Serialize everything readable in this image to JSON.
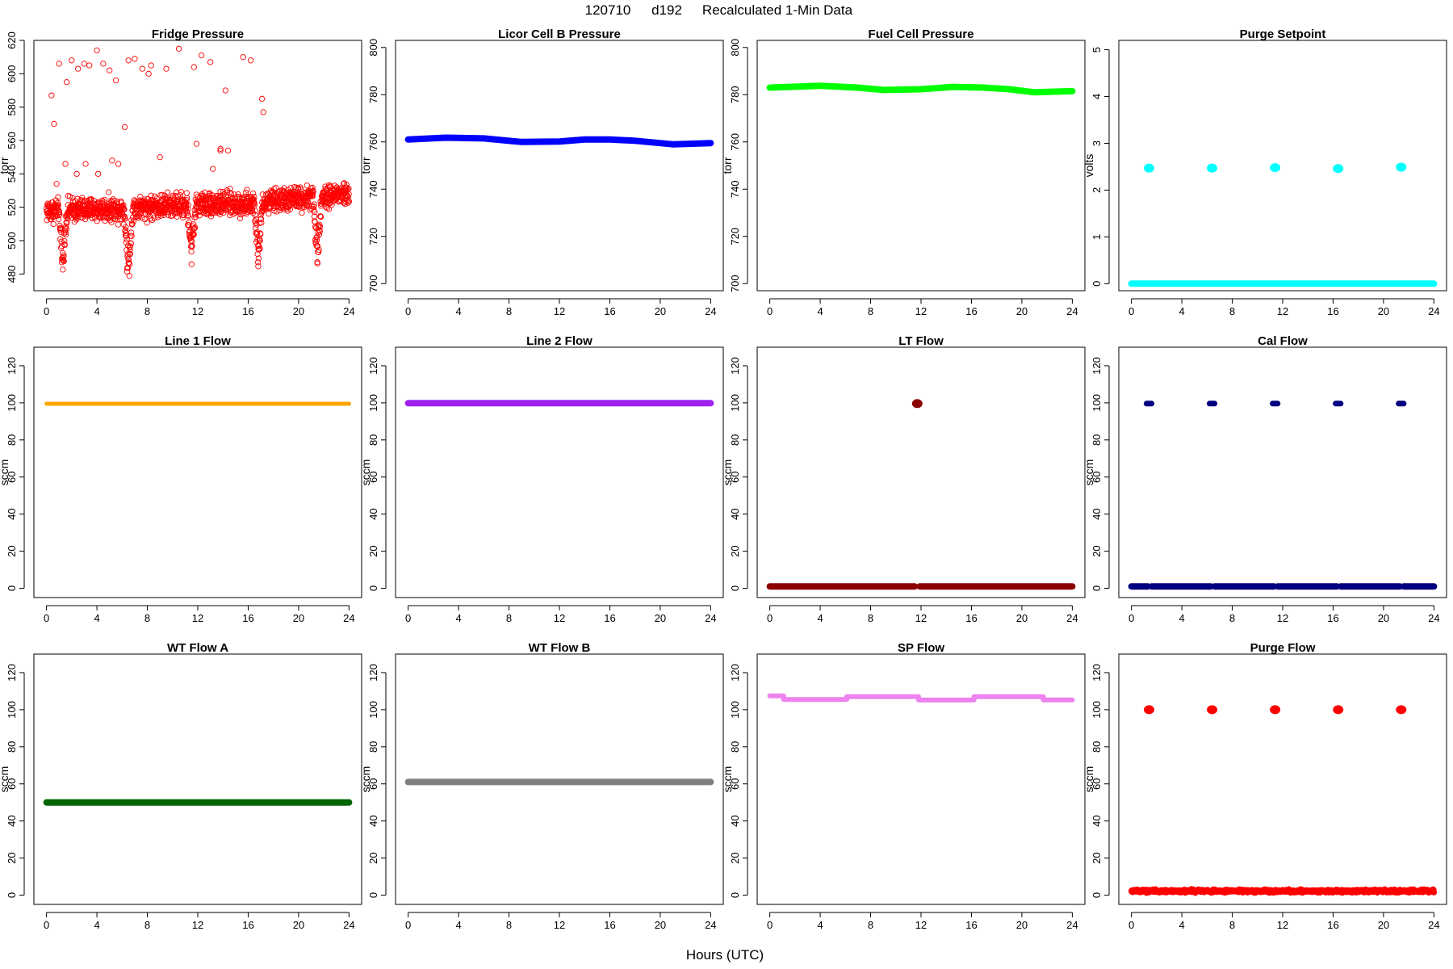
{
  "figure": {
    "title_parts": [
      "120710",
      "d192",
      "Recalculated 1-Min Data"
    ],
    "xlabel": "Hours (UTC)"
  },
  "chart_data": [
    {
      "type": "scatter",
      "title": "Fridge Pressure",
      "ylabel": "torr",
      "color": "#ff0000",
      "marker": "open-circle",
      "xlim": [
        -1,
        25
      ],
      "ylim": [
        470,
        620
      ],
      "xticks": [
        0,
        4,
        8,
        12,
        16,
        20,
        24
      ],
      "yticks": [
        480,
        500,
        520,
        540,
        560,
        580,
        600,
        620
      ],
      "series": [
        {
          "style": "noisy",
          "baseline": [
            [
              0,
              518
            ],
            [
              6,
              519
            ],
            [
              12,
              522
            ],
            [
              17,
              522
            ],
            [
              18,
              524
            ],
            [
              24,
              528
            ]
          ],
          "spread": 7,
          "dips": [
            [
              1.3,
              483
            ],
            [
              6.5,
              474
            ],
            [
              11.5,
              484
            ],
            [
              16.8,
              486
            ],
            [
              21.5,
              484
            ]
          ],
          "x": [
            0.4,
            0.6,
            1.0,
            1.6,
            2.0,
            2.5,
            3.0,
            3.4,
            4.0,
            4.5,
            5.0,
            5.5,
            6.2,
            6.5,
            7.0,
            7.6,
            8.1,
            8.3,
            9.0,
            9.5,
            10.5,
            11.7,
            11.9,
            12.3,
            13.0,
            13.8,
            14.2,
            14.4,
            15.6,
            16.2,
            17.1,
            17.2,
            0.8,
            1.5,
            2.4,
            3.1,
            4.1,
            5.2,
            5.7,
            13.2,
            13.8
          ],
          "y": [
            587,
            570,
            606,
            595,
            608,
            603,
            606,
            605,
            614,
            606,
            602,
            596,
            568,
            608,
            609,
            603,
            600,
            605,
            550,
            603,
            615,
            604,
            558,
            611,
            607,
            554,
            590,
            554,
            610,
            608,
            585,
            577,
            534,
            546,
            540,
            546,
            540,
            548,
            546,
            543,
            555
          ]
        }
      ]
    },
    {
      "type": "line",
      "title": "Licor Cell B Pressure",
      "ylabel": "torr",
      "color": "#0000ff",
      "xlim": [
        -1,
        25
      ],
      "ylim": [
        697,
        803
      ],
      "xticks": [
        0,
        4,
        8,
        12,
        16,
        20,
        24
      ],
      "yticks": [
        700,
        720,
        740,
        760,
        780,
        800
      ],
      "series": [
        {
          "style": "thick",
          "x": [
            0,
            3,
            6,
            9,
            12,
            14,
            16,
            18,
            21,
            24
          ],
          "y": [
            761,
            761.8,
            761.5,
            760,
            760.2,
            761,
            761,
            760.5,
            759,
            759.5
          ]
        }
      ]
    },
    {
      "type": "line",
      "title": "Fuel Cell Pressure",
      "ylabel": "torr",
      "color": "#00ff00",
      "xlim": [
        -1,
        25
      ],
      "ylim": [
        697,
        803
      ],
      "xticks": [
        0,
        4,
        8,
        12,
        16,
        20,
        24
      ],
      "yticks": [
        700,
        720,
        740,
        760,
        780,
        800
      ],
      "series": [
        {
          "style": "thick",
          "x": [
            0,
            4,
            7,
            9,
            12,
            14.5,
            17,
            19,
            21,
            24
          ],
          "y": [
            783,
            783.8,
            783,
            782,
            782.3,
            783.3,
            783,
            782.3,
            781,
            781.5
          ]
        }
      ]
    },
    {
      "type": "scatter",
      "title": "Purge Setpoint",
      "ylabel": "volts",
      "color": "#00ffff",
      "xlim": [
        -1,
        25
      ],
      "ylim": [
        -0.15,
        5.2
      ],
      "xticks": [
        0,
        4,
        8,
        12,
        16,
        20,
        24
      ],
      "yticks": [
        0,
        1,
        2,
        3,
        4,
        5
      ],
      "series": [
        {
          "style": "thick",
          "x": [
            0,
            24
          ],
          "y": [
            0,
            0
          ]
        },
        {
          "style": "blobs",
          "x": [
            1.4,
            6.4,
            11.4,
            16.4,
            21.4
          ],
          "y": [
            2.47,
            2.47,
            2.48,
            2.46,
            2.49
          ]
        }
      ]
    },
    {
      "type": "line",
      "title": "Line 1 Flow",
      "ylabel": "sccm",
      "color": "#ffa500",
      "xlim": [
        -1,
        25
      ],
      "ylim": [
        -5,
        130
      ],
      "xticks": [
        0,
        4,
        8,
        12,
        16,
        20,
        24
      ],
      "yticks": [
        0,
        20,
        40,
        60,
        80,
        100,
        120
      ],
      "series": [
        {
          "style": "thin",
          "x": [
            0,
            24
          ],
          "y": [
            99.5,
            99.5
          ]
        }
      ]
    },
    {
      "type": "line",
      "title": "Line 2 Flow",
      "ylabel": "sccm",
      "color": "#a020f0",
      "xlim": [
        -1,
        25
      ],
      "ylim": [
        -5,
        130
      ],
      "xticks": [
        0,
        4,
        8,
        12,
        16,
        20,
        24
      ],
      "yticks": [
        0,
        20,
        40,
        60,
        80,
        100,
        120
      ],
      "series": [
        {
          "style": "thick",
          "x": [
            0,
            24
          ],
          "y": [
            99.8,
            99.8
          ]
        }
      ]
    },
    {
      "type": "scatter",
      "title": "LT Flow",
      "ylabel": "sccm",
      "color": "#8b0000",
      "xlim": [
        -1,
        25
      ],
      "ylim": [
        -5,
        130
      ],
      "xticks": [
        0,
        4,
        8,
        12,
        16,
        20,
        24
      ],
      "yticks": [
        0,
        20,
        40,
        60,
        80,
        100,
        120
      ],
      "series": [
        {
          "style": "thick",
          "x": [
            0,
            11.5
          ],
          "y": [
            1,
            1
          ]
        },
        {
          "style": "thick",
          "x": [
            11.9,
            24
          ],
          "y": [
            1,
            1
          ]
        },
        {
          "style": "blobs",
          "x": [
            11.7
          ],
          "y": [
            99.6
          ]
        }
      ]
    },
    {
      "type": "scatter",
      "title": "Cal Flow",
      "ylabel": "sccm",
      "color": "#000080",
      "xlim": [
        -1,
        25
      ],
      "ylim": [
        -5,
        130
      ],
      "xticks": [
        0,
        4,
        8,
        12,
        16,
        20,
        24
      ],
      "yticks": [
        0,
        20,
        40,
        60,
        80,
        100,
        120
      ],
      "series": [
        {
          "style": "thick",
          "x": [
            0,
            1.3
          ],
          "y": [
            1,
            1
          ]
        },
        {
          "style": "thick",
          "x": [
            1.6,
            6.3
          ],
          "y": [
            1,
            1
          ]
        },
        {
          "style": "thick",
          "x": [
            6.6,
            11.3
          ],
          "y": [
            1,
            1
          ]
        },
        {
          "style": "thick",
          "x": [
            11.6,
            16.3
          ],
          "y": [
            1,
            1
          ]
        },
        {
          "style": "thick",
          "x": [
            16.6,
            21.3
          ],
          "y": [
            1,
            1
          ]
        },
        {
          "style": "thick",
          "x": [
            21.6,
            24
          ],
          "y": [
            1,
            1
          ]
        },
        {
          "style": "bars",
          "x": [
            1.4,
            6.4,
            11.4,
            16.4,
            21.4
          ],
          "y": [
            99.6,
            99.6,
            99.6,
            99.6,
            99.6
          ]
        }
      ]
    },
    {
      "type": "line",
      "title": "WT Flow A",
      "ylabel": "sccm",
      "color": "#006400",
      "xlim": [
        -1,
        25
      ],
      "ylim": [
        -5,
        130
      ],
      "xticks": [
        0,
        4,
        8,
        12,
        16,
        20,
        24
      ],
      "yticks": [
        0,
        20,
        40,
        60,
        80,
        100,
        120
      ],
      "series": [
        {
          "style": "thick",
          "x": [
            0,
            24
          ],
          "y": [
            50,
            50
          ]
        }
      ]
    },
    {
      "type": "line",
      "title": "WT Flow B",
      "ylabel": "sccm",
      "color": "#808080",
      "xlim": [
        -1,
        25
      ],
      "ylim": [
        -5,
        130
      ],
      "xticks": [
        0,
        4,
        8,
        12,
        16,
        20,
        24
      ],
      "yticks": [
        0,
        20,
        40,
        60,
        80,
        100,
        120
      ],
      "series": [
        {
          "style": "thick",
          "x": [
            0,
            24
          ],
          "y": [
            61,
            61
          ]
        }
      ]
    },
    {
      "type": "line",
      "title": "SP Flow",
      "ylabel": "sccm",
      "color": "#ee82ee",
      "xlim": [
        -1,
        25
      ],
      "ylim": [
        -5,
        130
      ],
      "xticks": [
        0,
        4,
        8,
        12,
        16,
        20,
        24
      ],
      "yticks": [
        0,
        20,
        40,
        60,
        80,
        100,
        120
      ],
      "series": [
        {
          "style": "step",
          "x": [
            0,
            1.1,
            1.1,
            6.1,
            6.1,
            11.8,
            11.8,
            16.2,
            16.2,
            21.7,
            21.7,
            24
          ],
          "y": [
            107.5,
            107.5,
            105.5,
            105.5,
            107,
            107,
            105.2,
            105.2,
            107,
            107,
            105.3,
            105.3
          ]
        }
      ]
    },
    {
      "type": "scatter",
      "title": "Purge Flow",
      "ylabel": "sccm",
      "color": "#ff0000",
      "xlim": [
        -1,
        25
      ],
      "ylim": [
        -5,
        130
      ],
      "xticks": [
        0,
        4,
        8,
        12,
        16,
        20,
        24
      ],
      "yticks": [
        0,
        20,
        40,
        60,
        80,
        100,
        120
      ],
      "series": [
        {
          "style": "noisy",
          "baseline": [
            [
              0,
              2.2
            ],
            [
              24,
              2.2
            ]
          ],
          "spread": 0.8
        },
        {
          "style": "blobs",
          "x": [
            1.4,
            6.4,
            11.4,
            16.4,
            21.4
          ],
          "y": [
            100,
            100,
            100,
            100,
            100
          ]
        }
      ]
    }
  ]
}
